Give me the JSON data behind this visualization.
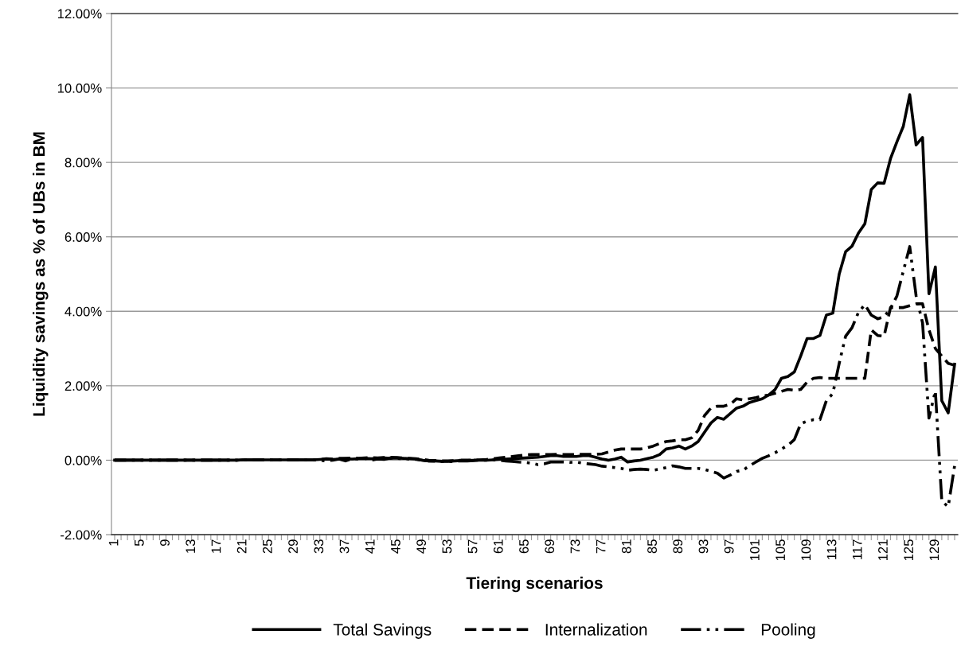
{
  "chart_data": {
    "type": "line",
    "xlabel": "Tiering scenarios",
    "ylabel": "Liquidity savings as % of UBs in BM",
    "categories": [
      "1",
      null,
      null,
      null,
      "5",
      null,
      null,
      null,
      "9",
      null,
      null,
      null,
      "13",
      null,
      null,
      null,
      "17",
      null,
      null,
      null,
      "21",
      null,
      null,
      null,
      "25",
      null,
      null,
      null,
      "29",
      null,
      null,
      null,
      "33",
      null,
      null,
      null,
      "37",
      null,
      null,
      null,
      "41",
      null,
      null,
      null,
      "45",
      null,
      null,
      null,
      "49",
      null,
      null,
      null,
      "53",
      null,
      null,
      null,
      "57",
      null,
      null,
      null,
      "61",
      null,
      null,
      null,
      "65",
      null,
      null,
      null,
      "69",
      null,
      null,
      null,
      "73",
      null,
      null,
      null,
      "77",
      null,
      null,
      null,
      "81",
      null,
      null,
      null,
      "85",
      null,
      null,
      null,
      "89",
      null,
      null,
      null,
      "93",
      null,
      null,
      null,
      "97",
      null,
      null,
      null,
      "101",
      null,
      null,
      null,
      "105",
      null,
      null,
      null,
      "109",
      null,
      null,
      null,
      "113",
      null,
      null,
      null,
      "117",
      null,
      null,
      null,
      "121",
      null,
      null,
      null,
      "125",
      null,
      null,
      null,
      "129",
      null,
      null,
      null
    ],
    "ylim": [
      -2,
      12
    ],
    "yticks": [
      {
        "value": -2,
        "label": "-2.00%"
      },
      {
        "value": 0,
        "label": "0.00%"
      },
      {
        "value": 2,
        "label": "2.00%"
      },
      {
        "value": 4,
        "label": "4.00%"
      },
      {
        "value": 6,
        "label": "6.00%"
      },
      {
        "value": 8,
        "label": "8.00%"
      },
      {
        "value": 10,
        "label": "10.00%"
      },
      {
        "value": 12,
        "label": "12.00%"
      }
    ],
    "grid": "y",
    "legend": "bottom",
    "marker": "none",
    "series": [
      {
        "name": "Total Savings",
        "color": "#000000",
        "line_style": "solid",
        "values": [
          0,
          0,
          0,
          0,
          0,
          0,
          0,
          0,
          0,
          0,
          0,
          0,
          0,
          0,
          0,
          0,
          0,
          0,
          0,
          0,
          0.01,
          0.01,
          0.01,
          0.01,
          0.01,
          0.01,
          0.01,
          0.01,
          0.01,
          0.01,
          0.01,
          0.01,
          0.02,
          0.03,
          0.02,
          0.03,
          0.04,
          0.03,
          0.04,
          0.05,
          0.04,
          0.05,
          0.06,
          0.05,
          0.06,
          0.05,
          0.04,
          0.03,
          0.0,
          -0.02,
          -0.02,
          -0.03,
          -0.03,
          -0.02,
          -0.01,
          -0.01,
          0,
          0,
          0,
          0.01,
          0.02,
          0.03,
          0.04,
          0.05,
          0.06,
          0.07,
          0.08,
          0.1,
          0.12,
          0.12,
          0.1,
          0.1,
          0.1,
          0.12,
          0.12,
          0.08,
          0.03,
          0,
          0.03,
          0.08,
          -0.05,
          -0.02,
          0,
          0.04,
          0.08,
          0.15,
          0.3,
          0.33,
          0.38,
          0.3,
          0.38,
          0.5,
          0.75,
          1.0,
          1.15,
          1.1,
          1.25,
          1.4,
          1.45,
          1.55,
          1.6,
          1.65,
          1.75,
          1.9,
          2.2,
          2.25,
          2.37,
          2.8,
          3.27,
          3.27,
          3.35,
          3.9,
          3.95,
          5.0,
          5.6,
          5.75,
          6.1,
          6.35,
          7.27,
          7.45,
          7.44,
          8.1,
          8.55,
          8.97,
          9.82,
          8.47,
          8.67,
          4.47,
          5.19,
          1.6,
          1.27,
          2.58
        ]
      },
      {
        "name": "Internalization",
        "color": "#000000",
        "line_style": "dashed",
        "values": [
          0,
          0,
          0,
          0,
          0,
          0,
          0,
          0,
          0,
          0,
          0,
          0,
          0,
          0,
          0,
          0,
          0,
          0,
          0,
          0,
          0.01,
          0.01,
          0.01,
          0.01,
          0.01,
          0.01,
          0.01,
          0.01,
          0.01,
          0.01,
          0.01,
          0.01,
          0.02,
          0.04,
          0.03,
          0.05,
          0.05,
          0.06,
          0.05,
          0.06,
          0.07,
          0.06,
          0.07,
          0.08,
          0.07,
          0.06,
          0.05,
          0.04,
          0.02,
          0.0,
          -0.01,
          -0.02,
          -0.02,
          -0.01,
          0,
          0,
          0,
          0.01,
          0.02,
          0.04,
          0.06,
          0.08,
          0.1,
          0.12,
          0.14,
          0.15,
          0.15,
          0.15,
          0.15,
          0.16,
          0.15,
          0.15,
          0.15,
          0.16,
          0.16,
          0.16,
          0.17,
          0.22,
          0.27,
          0.3,
          0.3,
          0.3,
          0.3,
          0.33,
          0.38,
          0.45,
          0.5,
          0.52,
          0.55,
          0.55,
          0.6,
          0.8,
          1.2,
          1.4,
          1.45,
          1.45,
          1.5,
          1.65,
          1.62,
          1.65,
          1.68,
          1.72,
          1.75,
          1.8,
          1.85,
          1.9,
          1.88,
          1.9,
          2.1,
          2.2,
          2.22,
          2.2,
          2.2,
          2.2,
          2.2,
          2.2,
          2.2,
          2.2,
          3.5,
          3.35,
          3.33,
          4.1,
          4.1,
          4.1,
          4.15,
          4.2,
          4.2,
          3.5,
          3.0,
          2.8,
          2.6,
          2.55
        ]
      },
      {
        "name": "Pooling",
        "color": "#000000",
        "line_style": "dashdot",
        "values": [
          0,
          0,
          0,
          0,
          0,
          0,
          0,
          0,
          0,
          0,
          0,
          0,
          0,
          0,
          0,
          0,
          0,
          0,
          0,
          0,
          0.01,
          0.01,
          0.01,
          0.01,
          0.01,
          0.01,
          0.01,
          0.01,
          0.01,
          0.01,
          0.01,
          0.01,
          0.0,
          -0.02,
          0.0,
          0.03,
          -0.02,
          0.04,
          0.03,
          0.05,
          0.0,
          0.03,
          0.02,
          0.06,
          0.05,
          0.04,
          0.03,
          0.02,
          0,
          -0.02,
          -0.03,
          -0.04,
          -0.04,
          -0.03,
          -0.02,
          -0.02,
          -0.01,
          0,
          0,
          0.01,
          0.0,
          -0.02,
          -0.03,
          -0.05,
          -0.06,
          -0.08,
          -0.12,
          -0.1,
          -0.05,
          -0.05,
          -0.05,
          -0.06,
          -0.05,
          -0.08,
          -0.1,
          -0.12,
          -0.16,
          -0.18,
          -0.2,
          -0.22,
          -0.27,
          -0.25,
          -0.24,
          -0.25,
          -0.27,
          -0.24,
          -0.2,
          -0.15,
          -0.18,
          -0.22,
          -0.22,
          -0.22,
          -0.25,
          -0.3,
          -0.35,
          -0.48,
          -0.4,
          -0.3,
          -0.27,
          -0.15,
          -0.05,
          0.05,
          0.12,
          0.2,
          0.3,
          0.4,
          0.55,
          0.98,
          1.05,
          1.09,
          1.09,
          1.6,
          1.79,
          2.6,
          3.33,
          3.56,
          3.97,
          4.18,
          3.9,
          3.8,
          3.85,
          4.08,
          4.41,
          5.08,
          5.74,
          4.41,
          3.69,
          1.13,
          1.86,
          -1.1,
          -1.25,
          -0.15
        ]
      }
    ]
  }
}
